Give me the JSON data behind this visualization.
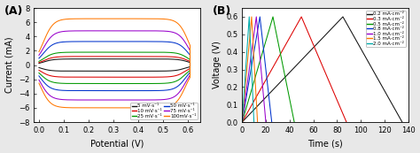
{
  "panel_A": {
    "title": "(A)",
    "xlabel": "Potential (V)",
    "ylabel": "Current (mA)",
    "xlim": [
      -0.02,
      0.65
    ],
    "ylim": [
      -8,
      8
    ],
    "xticks": [
      0.0,
      0.1,
      0.2,
      0.3,
      0.4,
      0.5,
      0.6
    ],
    "yticks": [
      -8,
      -6,
      -4,
      -2,
      0,
      2,
      4,
      6,
      8
    ],
    "cv_curves": [
      {
        "label": "5 mV·s⁻¹",
        "color": "#111111",
        "imax": 0.85,
        "imin": -0.85,
        "asym": 0.0
      },
      {
        "label": "10 mV·s⁻¹",
        "color": "#dd0000",
        "imax": 1.2,
        "imin": -1.7,
        "asym": 0.15
      },
      {
        "label": "25 mV·s⁻¹",
        "color": "#009900",
        "imax": 1.8,
        "imin": -2.6,
        "asym": 0.2
      },
      {
        "label": "50 mV·s⁻¹",
        "color": "#0033cc",
        "imax": 3.3,
        "imin": -3.6,
        "asym": 0.1
      },
      {
        "label": "75 mV·s⁻¹",
        "color": "#9900cc",
        "imax": 4.8,
        "imin": -4.9,
        "asym": 0.05
      },
      {
        "label": "100mV·s⁻¹",
        "color": "#ff7700",
        "imax": 6.5,
        "imin": -6.0,
        "asym": 0.0
      }
    ]
  },
  "panel_B": {
    "title": "(B)",
    "xlabel": "Time (s)",
    "ylabel": "Voltage (V)",
    "xlim": [
      0,
      140
    ],
    "ylim": [
      0,
      0.65
    ],
    "xticks": [
      0,
      20,
      40,
      60,
      80,
      100,
      120,
      140
    ],
    "yticks": [
      0.0,
      0.1,
      0.2,
      0.3,
      0.4,
      0.5,
      0.6
    ],
    "gcd_curves": [
      {
        "label": "0.2 mA·cm⁻²",
        "color": "#111111",
        "t_charge": 85,
        "t_discharge": 50
      },
      {
        "label": "0.3 mA·cm⁻²",
        "color": "#dd0000",
        "t_charge": 50,
        "t_discharge": 38
      },
      {
        "label": "0.5 mA·cm⁻²",
        "color": "#009900",
        "t_charge": 26,
        "t_discharge": 18
      },
      {
        "label": "0.8 mA·cm⁻²",
        "color": "#0033cc",
        "t_charge": 15,
        "t_discharge": 10
      },
      {
        "label": "1.0 mA·cm⁻²",
        "color": "#9900cc",
        "t_charge": 12,
        "t_discharge": 8
      },
      {
        "label": "1.5 mA·cm⁻²",
        "color": "#ff7700",
        "t_charge": 8,
        "t_discharge": 5
      },
      {
        "label": "2.0 mA·cm⁻²",
        "color": "#00aaaa",
        "t_charge": 6,
        "t_discharge": 4
      }
    ]
  },
  "fig_bg": "#e8e8e8",
  "fontsize": 7,
  "tick_fontsize": 6
}
